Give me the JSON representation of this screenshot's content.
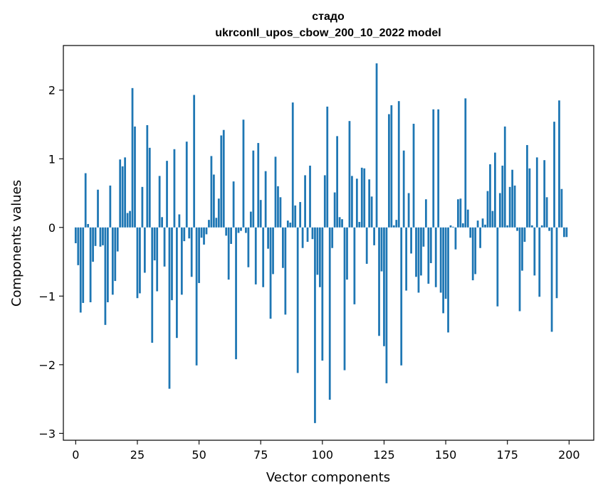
{
  "chart_data": {
    "type": "bar",
    "title": "стадо",
    "subtitle": "ukrconll_upos_cbow_200_10_2022 model",
    "xlabel": "Vector components",
    "ylabel": "Components values",
    "xlim": [
      -5,
      210
    ],
    "ylim": [
      -3.1,
      2.65
    ],
    "xticks": [
      0,
      25,
      50,
      75,
      100,
      125,
      150,
      175,
      200
    ],
    "xtick_labels": [
      "0",
      "25",
      "50",
      "75",
      "100",
      "125",
      "150",
      "175",
      "200"
    ],
    "yticks": [
      2,
      1,
      0,
      -1,
      -2,
      -3
    ],
    "ytick_labels": [
      "2",
      "1",
      "0",
      "−1",
      "−2",
      "−3"
    ],
    "grid": false,
    "bar_color": "#1f77b4",
    "values": [
      -0.23,
      -0.55,
      -1.24,
      -1.1,
      0.79,
      0.05,
      -1.09,
      -0.5,
      -0.27,
      0.55,
      -0.28,
      -0.26,
      -1.42,
      -1.09,
      0.61,
      -0.98,
      -0.78,
      -0.35,
      0.99,
      0.89,
      1.02,
      0.21,
      0.24,
      2.03,
      1.47,
      -1.03,
      -0.96,
      0.59,
      -0.66,
      1.49,
      1.16,
      -1.68,
      -0.48,
      -0.93,
      0.75,
      0.15,
      -0.57,
      0.97,
      -2.35,
      -1.06,
      1.14,
      -1.61,
      0.19,
      -0.98,
      -0.2,
      1.25,
      -0.16,
      -0.72,
      1.93,
      -2.01,
      -0.81,
      -0.15,
      -0.25,
      -0.1,
      0.11,
      1.04,
      0.77,
      0.14,
      0.42,
      1.34,
      1.42,
      -0.12,
      -0.76,
      -0.24,
      0.67,
      -1.92,
      -0.08,
      -0.05,
      1.57,
      -0.08,
      -0.58,
      0.23,
      1.12,
      -0.83,
      1.23,
      0.4,
      -0.87,
      0.82,
      -0.31,
      -1.33,
      -0.68,
      1.03,
      0.6,
      0.44,
      -0.59,
      -1.27,
      0.1,
      0.07,
      1.82,
      0.32,
      -2.12,
      0.37,
      -0.3,
      0.76,
      -0.21,
      0.9,
      -0.17,
      -2.85,
      -0.69,
      -0.87,
      -1.94,
      0.76,
      1.76,
      -2.51,
      -0.3,
      0.51,
      1.33,
      0.15,
      0.12,
      -2.08,
      -0.76,
      1.55,
      0.75,
      -1.12,
      0.71,
      0.08,
      0.87,
      0.86,
      -0.53,
      0.7,
      0.45,
      -0.26,
      2.39,
      -1.58,
      -0.64,
      -1.73,
      -2.27,
      1.65,
      1.78,
      0.03,
      0.11,
      1.84,
      -2.01,
      1.12,
      -0.92,
      0.5,
      -0.38,
      1.51,
      -0.72,
      -0.95,
      -0.7,
      -0.28,
      0.41,
      -0.82,
      -0.52,
      1.72,
      -0.87,
      1.72,
      -0.95,
      -1.25,
      -1.04,
      -1.53,
      0.03,
      0.01,
      -0.32,
      0.41,
      0.42,
      0.06,
      1.88,
      0.26,
      -0.15,
      -0.77,
      -0.68,
      0.1,
      -0.3,
      0.13,
      0.04,
      0.53,
      0.92,
      0.24,
      1.09,
      -1.15,
      0.5,
      0.9,
      1.47,
      0.03,
      0.59,
      0.84,
      0.61,
      -0.05,
      -1.22,
      -0.63,
      -0.21,
      1.2,
      0.86,
      0.03,
      -0.7,
      1.02,
      -1.01,
      0.03,
      0.98,
      0.44,
      -0.05,
      -1.52,
      1.54,
      -1.03,
      1.85,
      0.56,
      -0.14,
      -0.14
    ]
  }
}
